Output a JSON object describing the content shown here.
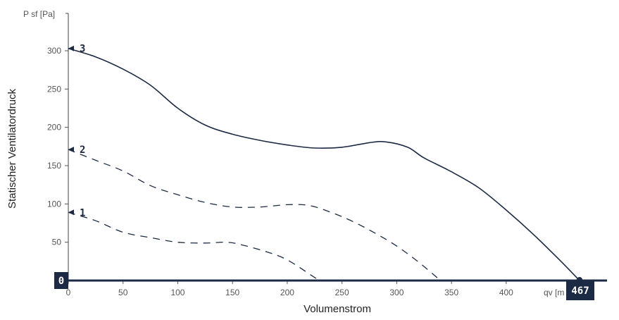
{
  "chart_data": {
    "type": "line",
    "xlabel": "Volumenstrom",
    "ylabel": "Statischer Ventilatordruck",
    "y_unit_label": "P sf [Pa]",
    "x_unit_label": "qv [m",
    "xlim": [
      0,
      480
    ],
    "ylim": [
      0,
      335
    ],
    "x_ticks": [
      "0",
      "50",
      "100",
      "150",
      "200",
      "250",
      "300",
      "350",
      "400"
    ],
    "y_ticks": [
      "0",
      "50",
      "100",
      "150",
      "200",
      "250",
      "300"
    ],
    "grid": false,
    "line_color": "#1c2a44",
    "series": [
      {
        "name": "3",
        "style": "solid",
        "points": [
          [
            0,
            303
          ],
          [
            25,
            292
          ],
          [
            50,
            276
          ],
          [
            75,
            255
          ],
          [
            100,
            225
          ],
          [
            125,
            203
          ],
          [
            150,
            191
          ],
          [
            175,
            183
          ],
          [
            200,
            177
          ],
          [
            225,
            173
          ],
          [
            250,
            174
          ],
          [
            275,
            180
          ],
          [
            290,
            181
          ],
          [
            310,
            174
          ],
          [
            325,
            160
          ],
          [
            350,
            142
          ],
          [
            375,
            121
          ],
          [
            400,
            92
          ],
          [
            425,
            60
          ],
          [
            450,
            25
          ],
          [
            467,
            0
          ]
        ]
      },
      {
        "name": "2",
        "style": "dashed",
        "points": [
          [
            0,
            171
          ],
          [
            25,
            157
          ],
          [
            50,
            143
          ],
          [
            75,
            124
          ],
          [
            100,
            112
          ],
          [
            125,
            102
          ],
          [
            150,
            96
          ],
          [
            175,
            96
          ],
          [
            200,
            99
          ],
          [
            220,
            98
          ],
          [
            240,
            89
          ],
          [
            260,
            77
          ],
          [
            280,
            62
          ],
          [
            300,
            45
          ],
          [
            320,
            24
          ],
          [
            340,
            0
          ]
        ]
      },
      {
        "name": "1",
        "style": "dashed",
        "points": [
          [
            0,
            89
          ],
          [
            25,
            78
          ],
          [
            50,
            63
          ],
          [
            75,
            56
          ],
          [
            100,
            50
          ],
          [
            125,
            49
          ],
          [
            145,
            50
          ],
          [
            160,
            46
          ],
          [
            180,
            38
          ],
          [
            200,
            27
          ],
          [
            225,
            4
          ],
          [
            230,
            0
          ]
        ]
      }
    ],
    "range_start_label": "0",
    "range_end_label": "467"
  }
}
